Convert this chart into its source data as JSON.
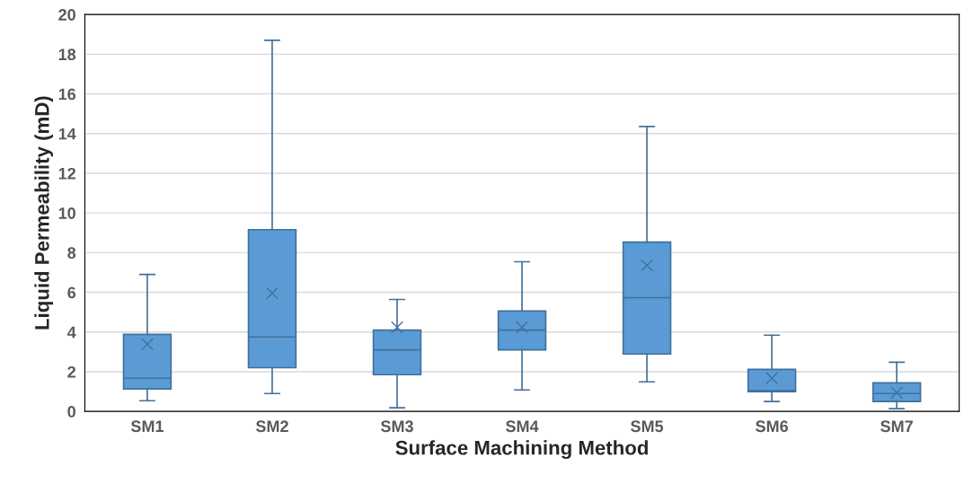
{
  "chart_data": {
    "type": "box",
    "xlabel": "Surface Machining Method",
    "ylabel": "Liquid Permeability (mD)",
    "categories": [
      "SM1",
      "SM2",
      "SM3",
      "SM4",
      "SM5",
      "SM6",
      "SM7"
    ],
    "color": "#5b9bd5",
    "boxes": [
      {
        "low": 0.54,
        "q1": 1.13,
        "median": 1.67,
        "q3": 3.88,
        "high": 6.9,
        "mean": 3.39
      },
      {
        "low": 0.9,
        "q1": 2.2,
        "median": 3.75,
        "q3": 9.16,
        "high": 18.7,
        "mean": 5.96
      },
      {
        "low": 0.18,
        "q1": 1.85,
        "median": 3.1,
        "q3": 4.1,
        "high": 5.64,
        "mean": 4.24
      },
      {
        "low": 1.08,
        "q1": 3.1,
        "median": 4.1,
        "q3": 5.06,
        "high": 7.54,
        "mean": 4.24
      },
      {
        "low": 1.49,
        "q1": 2.89,
        "median": 5.73,
        "q3": 8.53,
        "high": 14.36,
        "mean": 7.36
      },
      {
        "low": 0.5,
        "q1": 0.99,
        "median": 1.04,
        "q3": 2.12,
        "high": 3.84,
        "mean": 1.67
      },
      {
        "low": 0.14,
        "q1": 0.5,
        "median": 0.9,
        "q3": 1.44,
        "high": 2.48,
        "mean": 0.95
      }
    ],
    "ylim": [
      0,
      20
    ],
    "yticks": [
      0,
      2,
      4,
      6,
      8,
      10,
      12,
      14,
      16,
      18,
      20
    ],
    "grid": "y",
    "marker": "cross",
    "legend": false
  }
}
